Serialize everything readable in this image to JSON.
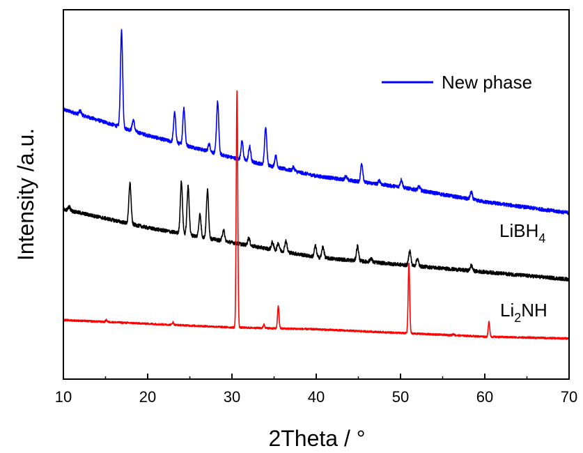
{
  "chart_data": {
    "type": "line",
    "xlabel": "2Theta / °",
    "ylabel": "Intensity /a.u.",
    "xlim": [
      10,
      70
    ],
    "x_ticks": [
      "10",
      "20",
      "30",
      "40",
      "50",
      "60",
      "70"
    ],
    "y_ticks_labeled": false,
    "grid": false,
    "legend": {
      "position": "top-right",
      "entries": [
        {
          "name": "New phase",
          "color": "#0000ff"
        }
      ]
    },
    "series": [
      {
        "name": "New phase",
        "color": "#0000ff",
        "baseline": [
          [
            10,
            0.73
          ],
          [
            20,
            0.66
          ],
          [
            30,
            0.6
          ],
          [
            40,
            0.55
          ],
          [
            50,
            0.52
          ],
          [
            60,
            0.48
          ],
          [
            70,
            0.45
          ]
        ],
        "peaks": [
          [
            12.0,
            0.01
          ],
          [
            16.9,
            0.26
          ],
          [
            18.3,
            0.03
          ],
          [
            23.2,
            0.08
          ],
          [
            24.3,
            0.1
          ],
          [
            27.3,
            0.02
          ],
          [
            28.3,
            0.14
          ],
          [
            31.2,
            0.05
          ],
          [
            32.1,
            0.04
          ],
          [
            34.0,
            0.1
          ],
          [
            35.2,
            0.03
          ],
          [
            37.3,
            0.01
          ],
          [
            43.5,
            0.01
          ],
          [
            45.4,
            0.05
          ],
          [
            47.5,
            0.01
          ],
          [
            50.1,
            0.02
          ],
          [
            52.2,
            0.01
          ],
          [
            58.4,
            0.02
          ]
        ]
      },
      {
        "name": "LiBH4",
        "label_main": "LiBH",
        "label_sub": "4",
        "color": "#000000",
        "baseline": [
          [
            10,
            0.46
          ],
          [
            20,
            0.41
          ],
          [
            30,
            0.37
          ],
          [
            40,
            0.33
          ],
          [
            50,
            0.31
          ],
          [
            60,
            0.29
          ],
          [
            70,
            0.27
          ]
        ],
        "peaks": [
          [
            10.7,
            0.01
          ],
          [
            17.9,
            0.11
          ],
          [
            24.0,
            0.14
          ],
          [
            24.8,
            0.13
          ],
          [
            26.2,
            0.06
          ],
          [
            27.1,
            0.13
          ],
          [
            29.0,
            0.03
          ],
          [
            32.0,
            0.02
          ],
          [
            34.8,
            0.02
          ],
          [
            35.5,
            0.02
          ],
          [
            36.4,
            0.03
          ],
          [
            39.9,
            0.03
          ],
          [
            40.8,
            0.03
          ],
          [
            44.9,
            0.04
          ],
          [
            46.5,
            0.01
          ],
          [
            51.1,
            0.04
          ],
          [
            52.0,
            0.02
          ],
          [
            58.4,
            0.015
          ]
        ]
      },
      {
        "name": "Li2NH",
        "label_main": "Li",
        "label_sub": "2",
        "label_end": "NH",
        "color": "#ff0000",
        "baseline": [
          [
            10,
            0.16
          ],
          [
            30,
            0.14
          ],
          [
            40,
            0.135
          ],
          [
            50,
            0.125
          ],
          [
            60,
            0.115
          ],
          [
            70,
            0.11
          ]
        ],
        "peaks": [
          [
            15.1,
            0.005
          ],
          [
            23.0,
            0.007
          ],
          [
            30.6,
            0.64
          ],
          [
            33.8,
            0.01
          ],
          [
            35.5,
            0.06
          ],
          [
            51.0,
            0.19
          ],
          [
            56.3,
            0.004
          ],
          [
            60.5,
            0.04
          ]
        ]
      }
    ]
  }
}
